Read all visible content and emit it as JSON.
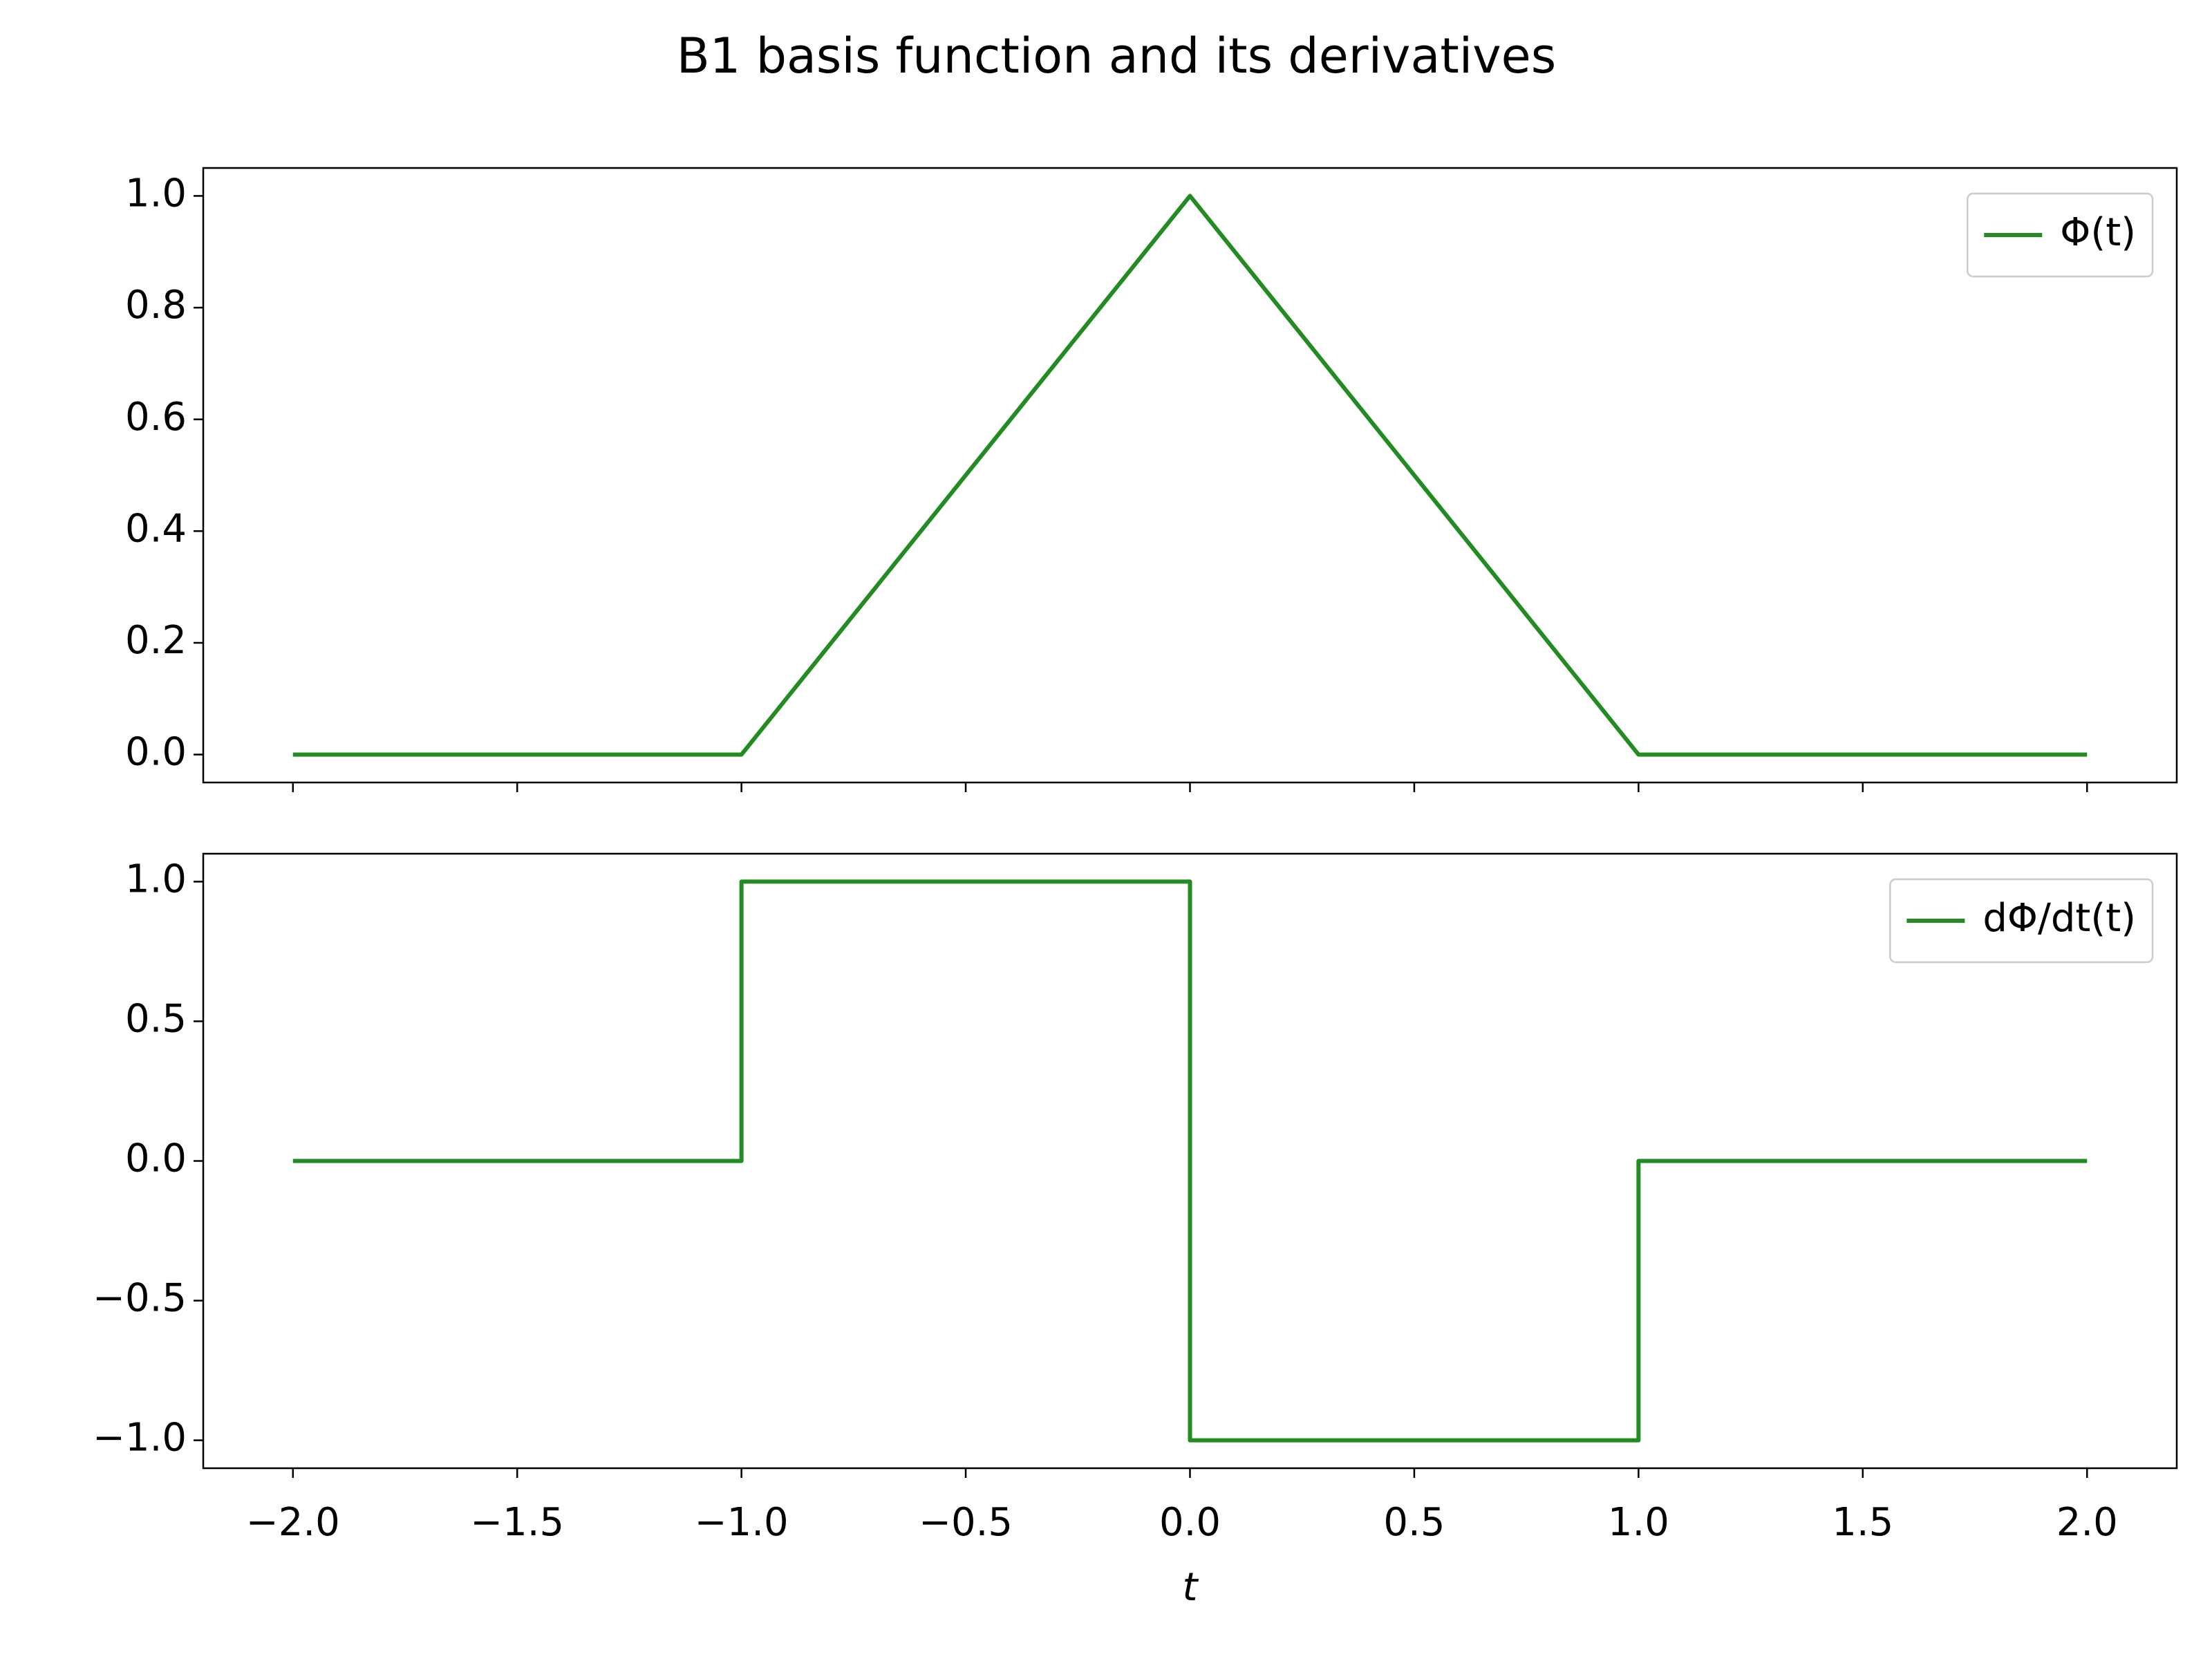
{
  "title": "B1 basis function and its derivatives",
  "chart_data": [
    {
      "type": "line",
      "x": [
        -2,
        -1,
        0,
        1,
        2
      ],
      "series": [
        {
          "name": "Φ(t)",
          "color": "#228b22",
          "values": [
            0,
            0,
            1,
            0,
            0
          ]
        }
      ],
      "xlim": [
        -2.2,
        2.2
      ],
      "xticks": [
        -2,
        -1.5,
        -1,
        -0.5,
        0,
        0.5,
        1,
        1.5,
        2
      ],
      "ylim": [
        -0.05,
        1.05
      ],
      "yticks": [
        {
          "value": 0,
          "label": "0.0"
        },
        {
          "value": 0.2,
          "label": "0.2"
        },
        {
          "value": 0.4,
          "label": "0.4"
        },
        {
          "value": 0.6,
          "label": "0.6"
        },
        {
          "value": 0.8,
          "label": "0.8"
        },
        {
          "value": 1,
          "label": "1.0"
        }
      ],
      "legend": "upper right"
    },
    {
      "type": "line",
      "x": [
        -2,
        -1,
        -1,
        0,
        0,
        1,
        1,
        2
      ],
      "series": [
        {
          "name": "dΦ/dt(t)",
          "color": "#228b22",
          "values": [
            0,
            0,
            1,
            1,
            -1,
            -1,
            0,
            0
          ]
        }
      ],
      "xlabel": "t",
      "xlim": [
        -2.2,
        2.2
      ],
      "xticks": [
        {
          "value": -2,
          "label": "−2.0"
        },
        {
          "value": -1.5,
          "label": "−1.5"
        },
        {
          "value": -1,
          "label": "−1.0"
        },
        {
          "value": -0.5,
          "label": "−0.5"
        },
        {
          "value": 0,
          "label": "0.0"
        },
        {
          "value": 0.5,
          "label": "0.5"
        },
        {
          "value": 1,
          "label": "1.0"
        },
        {
          "value": 1.5,
          "label": "1.5"
        },
        {
          "value": 2,
          "label": "2.0"
        }
      ],
      "ylim": [
        -1.1,
        1.1
      ],
      "yticks": [
        {
          "value": -1,
          "label": "−1.0"
        },
        {
          "value": -0.5,
          "label": "−0.5"
        },
        {
          "value": 0,
          "label": "0.0"
        },
        {
          "value": 0.5,
          "label": "0.5"
        },
        {
          "value": 1,
          "label": "1.0"
        }
      ],
      "legend": "upper right"
    }
  ]
}
